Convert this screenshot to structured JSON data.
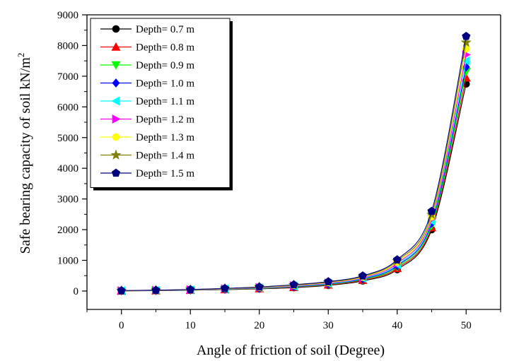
{
  "chart_data": {
    "type": "line",
    "xlabel": "Angle of friction of soil (Degree)",
    "ylabel": "Safe bearing capacity of soil kN/m",
    "ylabel_sup": "2",
    "xlim": [
      -5,
      55
    ],
    "ylim": [
      -600,
      9000
    ],
    "xticks": [
      0,
      10,
      20,
      30,
      40,
      50
    ],
    "xminor": [
      -5,
      5,
      15,
      25,
      35,
      45,
      55
    ],
    "yticks": [
      0,
      1000,
      2000,
      3000,
      4000,
      5000,
      6000,
      7000,
      8000,
      9000
    ],
    "yminor": [
      500,
      1500,
      2500,
      3500,
      4500,
      5500,
      6500,
      7500,
      8500
    ],
    "grid": false,
    "legend_position": "top-left",
    "x": [
      0,
      5,
      10,
      15,
      20,
      25,
      30,
      35,
      40,
      45,
      50
    ],
    "series": [
      {
        "name": "Depth= 0.7 m",
        "color": "#000000",
        "marker": "circle",
        "values": [
          5,
          12,
          25,
          45,
          70,
          110,
          185,
          330,
          700,
          2000,
          6750
        ]
      },
      {
        "name": "Depth= 0.8 m",
        "color": "#ff0000",
        "marker": "triangle-up",
        "values": [
          6,
          14,
          28,
          50,
          78,
          122,
          200,
          355,
          740,
          2070,
          6950
        ]
      },
      {
        "name": "Depth= 0.9 m",
        "color": "#00ff00",
        "marker": "triangle-down",
        "values": [
          7,
          16,
          31,
          55,
          86,
          134,
          215,
          375,
          780,
          2140,
          7150
        ]
      },
      {
        "name": "Depth= 1.0 m",
        "color": "#0000ff",
        "marker": "diamond",
        "values": [
          8,
          18,
          34,
          60,
          94,
          146,
          230,
          395,
          820,
          2210,
          7300
        ]
      },
      {
        "name": "Depth= 1.1 m",
        "color": "#00ffff",
        "marker": "triangle-left",
        "values": [
          9,
          20,
          37,
          65,
          102,
          158,
          245,
          415,
          860,
          2280,
          7500
        ]
      },
      {
        "name": "Depth= 1.2 m",
        "color": "#ff00ff",
        "marker": "triangle-right",
        "values": [
          10,
          22,
          40,
          70,
          110,
          170,
          260,
          435,
          900,
          2350,
          7700
        ]
      },
      {
        "name": "Depth= 1.3 m",
        "color": "#ffff00",
        "marker": "circle",
        "values": [
          11,
          24,
          43,
          75,
          118,
          182,
          275,
          455,
          940,
          2420,
          7900
        ]
      },
      {
        "name": "Depth= 1.4 m",
        "color": "#808000",
        "marker": "star",
        "values": [
          12,
          26,
          46,
          80,
          126,
          194,
          290,
          475,
          980,
          2490,
          8100
        ]
      },
      {
        "name": "Depth= 1.5 m",
        "color": "#000080",
        "marker": "pentagon",
        "values": [
          13,
          28,
          49,
          85,
          134,
          206,
          305,
          495,
          1020,
          2600,
          8300
        ]
      }
    ]
  }
}
